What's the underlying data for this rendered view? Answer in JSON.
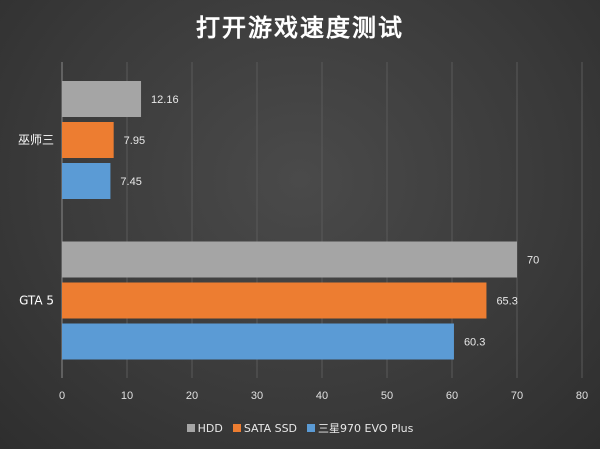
{
  "chart_data": {
    "type": "bar",
    "orientation": "horizontal",
    "title": "打开游戏速度测试",
    "categories": [
      "巫师三",
      "GTA 5"
    ],
    "series": [
      {
        "name": "HDD",
        "color": "#a5a5a5",
        "values": [
          12.16,
          70
        ]
      },
      {
        "name": "SATA SSD",
        "color": "#ed7d31",
        "values": [
          7.95,
          65.3
        ]
      },
      {
        "name": "三星970 EVO Plus",
        "color": "#5b9bd5",
        "values": [
          7.45,
          60.3
        ]
      }
    ],
    "value_labels": [
      [
        "12.16",
        "7.95",
        "7.45"
      ],
      [
        "70",
        "65.3",
        "60.3"
      ]
    ],
    "xlim": [
      0,
      80
    ],
    "x_ticks": [
      0,
      10,
      20,
      30,
      40,
      50,
      60,
      70,
      80
    ],
    "grid": true,
    "legend_position": "bottom"
  }
}
